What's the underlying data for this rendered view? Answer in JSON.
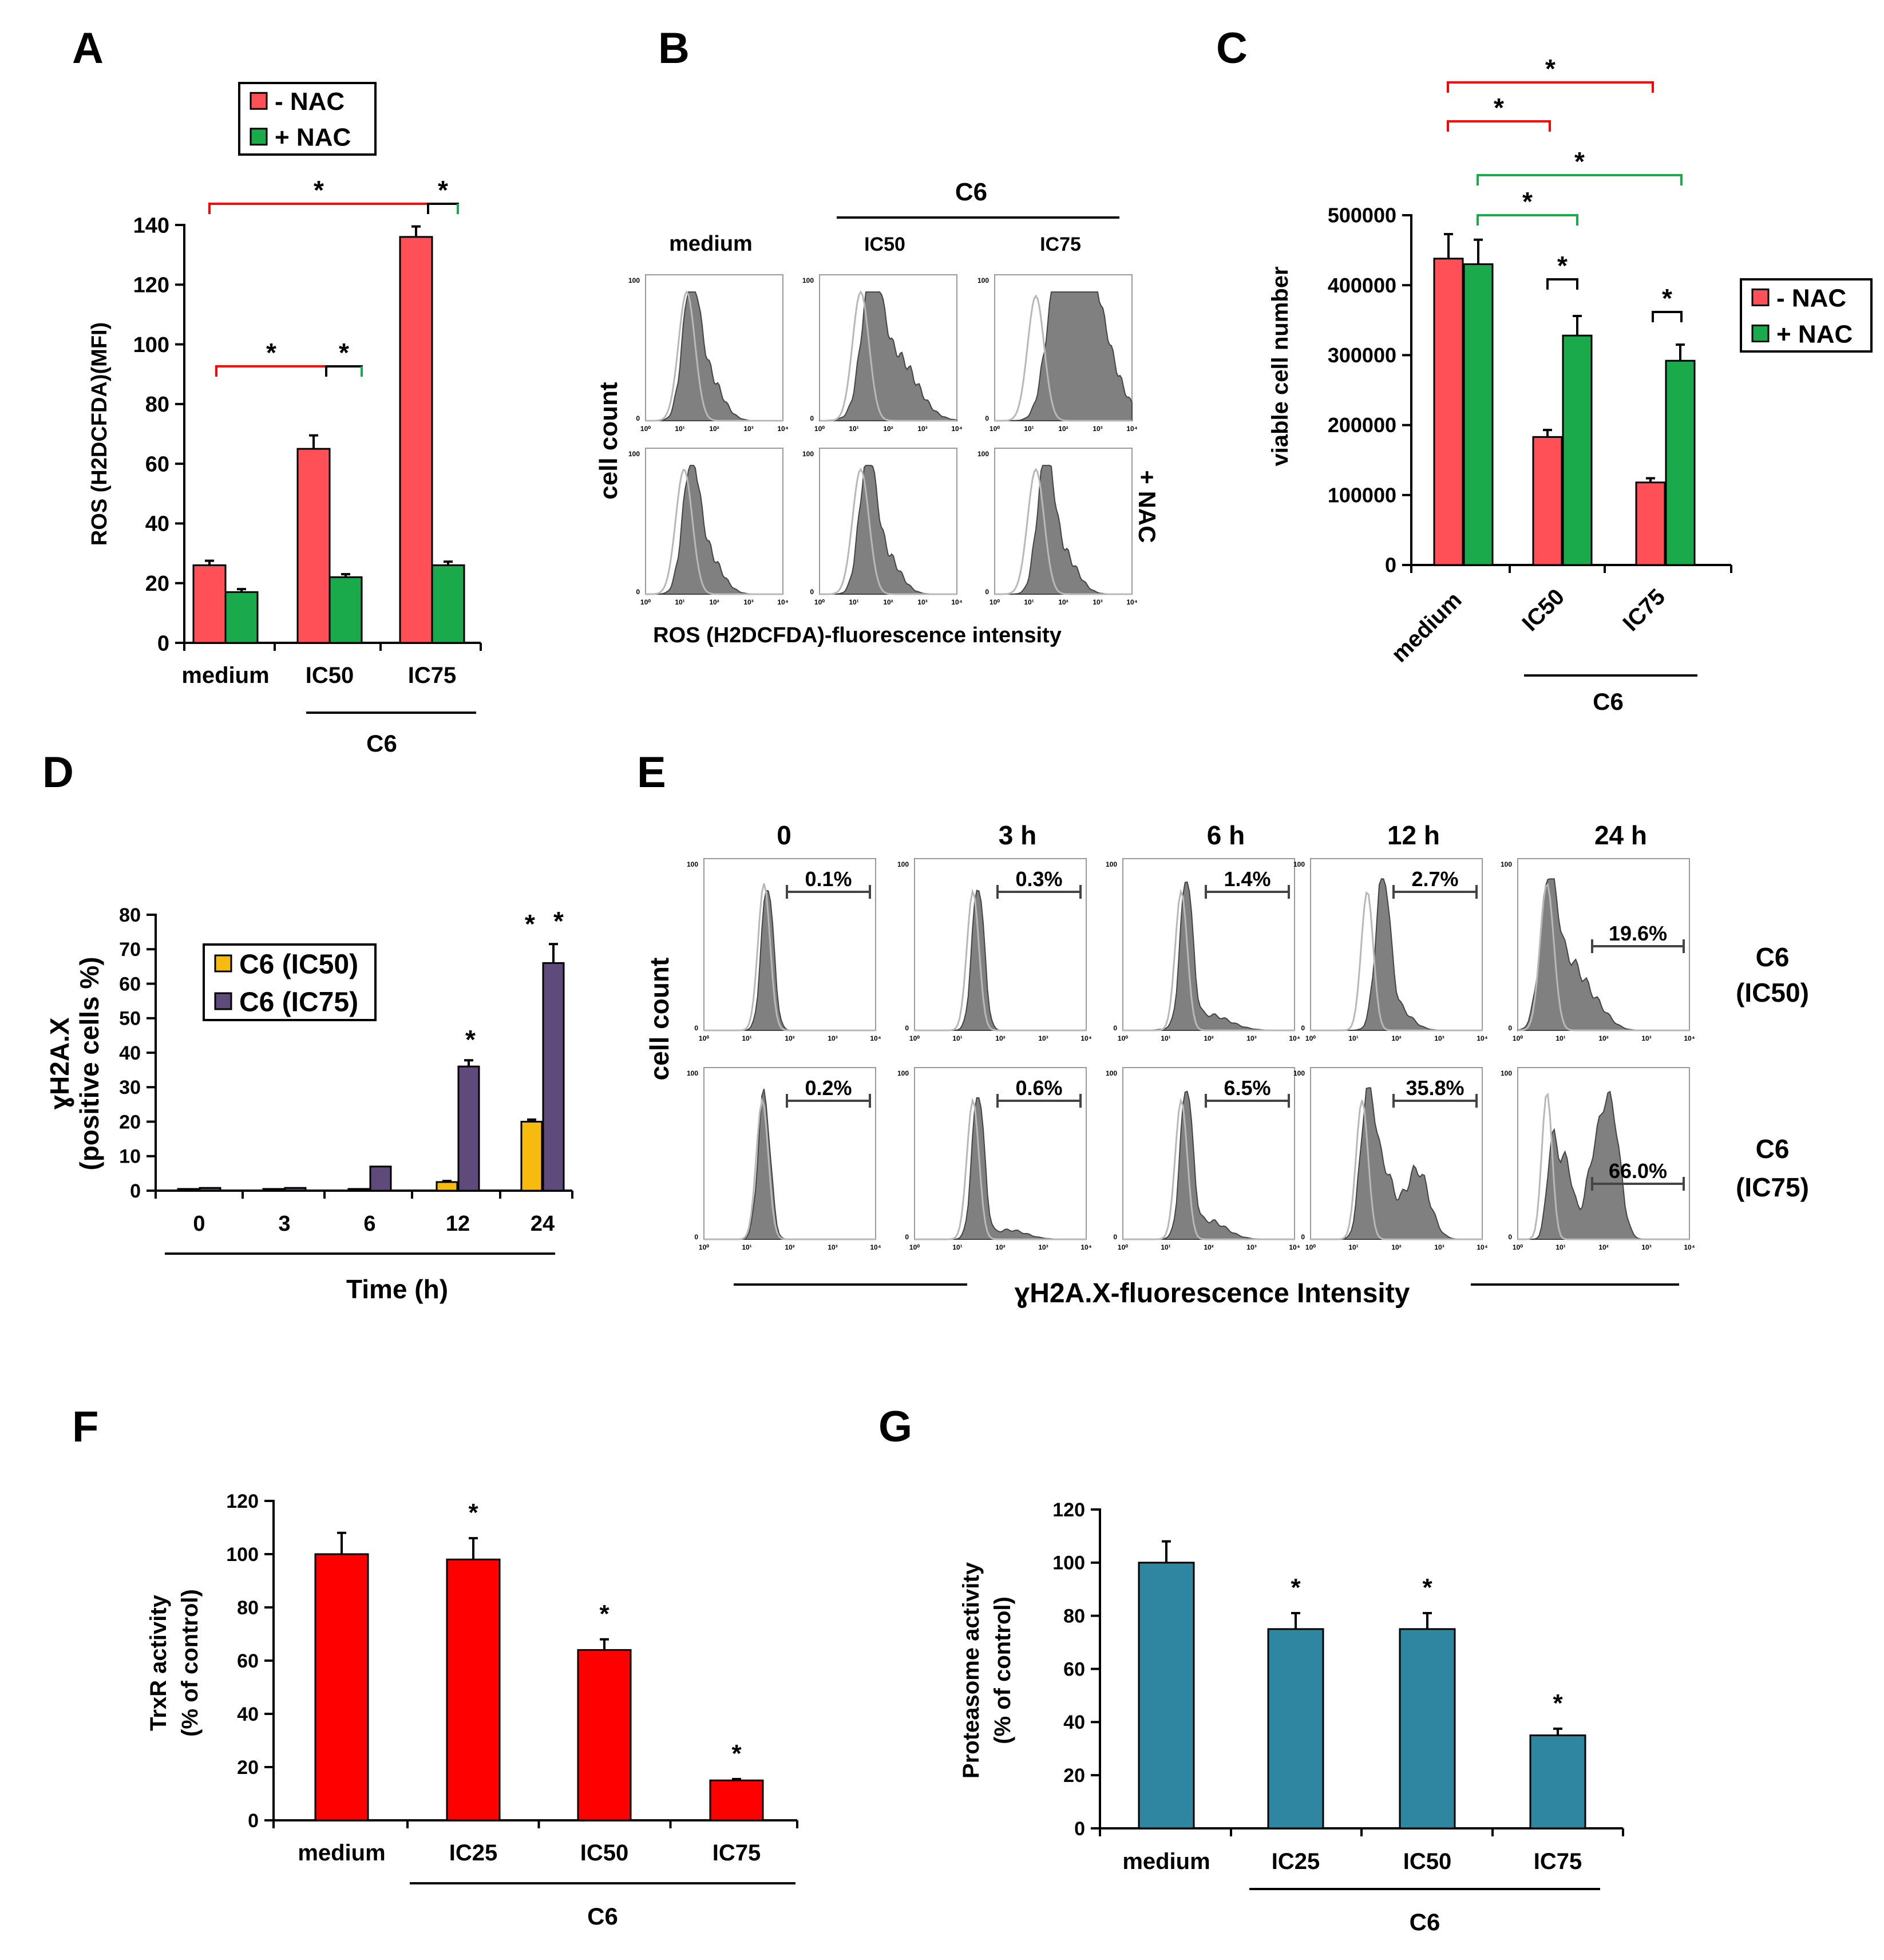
{
  "colors": {
    "minus_nac": "#ff4f57",
    "plus_nac": "#1aaa4b",
    "ic50": "#f7bb10",
    "ic75": "#5e4a7b",
    "trxr": "#ff0000",
    "proteasome": "#2e86a0",
    "hist_fill": "#808080",
    "hist_ctrl": "#b8b8b8"
  },
  "panel_labels": {
    "a": "A",
    "b": "B",
    "c": "C",
    "d": "D",
    "e": "E",
    "f": "F",
    "g": "G"
  },
  "chart_data": [
    {
      "id": "A",
      "type": "bar",
      "ylabel": "ROS (H2DCFDA)(MFI)",
      "ylim": [
        0,
        140
      ],
      "yticks": [
        0,
        20,
        40,
        60,
        80,
        100,
        120,
        140
      ],
      "categories": [
        "medium",
        "IC50",
        "IC75"
      ],
      "group_label": "C6",
      "series": [
        {
          "name": "- NAC",
          "values": [
            26,
            65,
            136
          ],
          "errors": [
            1.5,
            4.5,
            3.5
          ]
        },
        {
          "name": "+ NAC",
          "values": [
            17,
            22,
            26
          ],
          "errors": [
            1,
            1,
            1.2
          ]
        }
      ],
      "significance": "*",
      "legend_position": "top"
    },
    {
      "id": "B",
      "type": "histogram",
      "group_label": "C6",
      "columns": [
        "medium",
        "IC50",
        "IC75"
      ],
      "row_label": "+ NAC",
      "ylabel": "cell count",
      "xlabel": "ROS (H2DCFDA)-fluorescence intensity",
      "tick_text": {
        "y100": "100",
        "y0": "0",
        "x": [
          "10⁰",
          "10¹",
          "10²",
          "10³",
          "10⁴"
        ]
      }
    },
    {
      "id": "C",
      "type": "bar",
      "ylabel": "viable cell number",
      "ylim": [
        0,
        500000
      ],
      "yticks": [
        0,
        100000,
        200000,
        300000,
        400000,
        500000
      ],
      "categories": [
        "medium",
        "IC50",
        "IC75"
      ],
      "group_label": "C6",
      "series": [
        {
          "name": "- NAC",
          "values": [
            438000,
            183000,
            118000
          ],
          "errors": [
            35000,
            10000,
            6000
          ]
        },
        {
          "name": "+ NAC",
          "values": [
            430000,
            328000,
            292000
          ],
          "errors": [
            35000,
            28000,
            23000
          ]
        }
      ],
      "significance": "*",
      "legend_position": "right"
    },
    {
      "id": "D",
      "type": "bar",
      "ylabel": [
        "ɣH2A.X",
        "(positive cells %)"
      ],
      "xlabel": "Time (h)",
      "ylim": [
        0,
        80
      ],
      "yticks": [
        0,
        10,
        20,
        30,
        40,
        50,
        60,
        70,
        80
      ],
      "categories": [
        "0",
        "3",
        "6",
        "12",
        "24"
      ],
      "series": [
        {
          "name": "C6 (IC50)",
          "values": [
            0.5,
            0.5,
            0.5,
            2.5,
            20
          ],
          "errors": [
            0,
            0,
            0,
            0.3,
            0.6
          ]
        },
        {
          "name": "C6 (IC75)",
          "values": [
            0.8,
            0.8,
            7,
            36,
            66
          ],
          "errors": [
            0,
            0,
            0,
            1.8,
            5.5
          ]
        }
      ],
      "significance": "*",
      "legend_position": "top-left"
    },
    {
      "id": "E",
      "type": "histogram",
      "columns": [
        "0",
        "3 h",
        "6 h",
        "12 h",
        "24 h"
      ],
      "rows": [
        {
          "label": [
            "C6",
            "(IC50)"
          ],
          "percentages": [
            "0.1%",
            "0.3%",
            "1.4%",
            "2.7%",
            "19.6%"
          ]
        },
        {
          "label": [
            "C6",
            "(IC75)"
          ],
          "percentages": [
            "0.2%",
            "0.6%",
            "6.5%",
            "35.8%",
            "66.0%"
          ]
        }
      ],
      "ylabel": "cell count",
      "xlabel": "ɣH2A.X-fluorescence Intensity"
    },
    {
      "id": "F",
      "type": "bar",
      "ylabel": [
        "TrxR activity",
        "(% of control)"
      ],
      "ylim": [
        0,
        120
      ],
      "yticks": [
        0,
        20,
        40,
        60,
        80,
        100,
        120
      ],
      "categories": [
        "medium",
        "IC25",
        "IC50",
        "IC75"
      ],
      "group_label": "C6",
      "series": [
        {
          "name": "TrxR activity",
          "values": [
            100,
            98,
            64,
            15
          ],
          "errors": [
            8,
            8,
            4,
            0.5
          ]
        }
      ],
      "significance": "*"
    },
    {
      "id": "G",
      "type": "bar",
      "ylabel": [
        "Proteasome  activity",
        "(% of control)"
      ],
      "ylim": [
        0,
        120
      ],
      "yticks": [
        0,
        20,
        40,
        60,
        80,
        100,
        120
      ],
      "categories": [
        "medium",
        "IC25",
        "IC50",
        "IC75"
      ],
      "group_label": "C6",
      "series": [
        {
          "name": "Proteasome activity",
          "values": [
            100,
            75,
            75,
            35
          ],
          "errors": [
            8,
            6,
            6,
            2.5
          ]
        }
      ],
      "significance": "*"
    }
  ]
}
